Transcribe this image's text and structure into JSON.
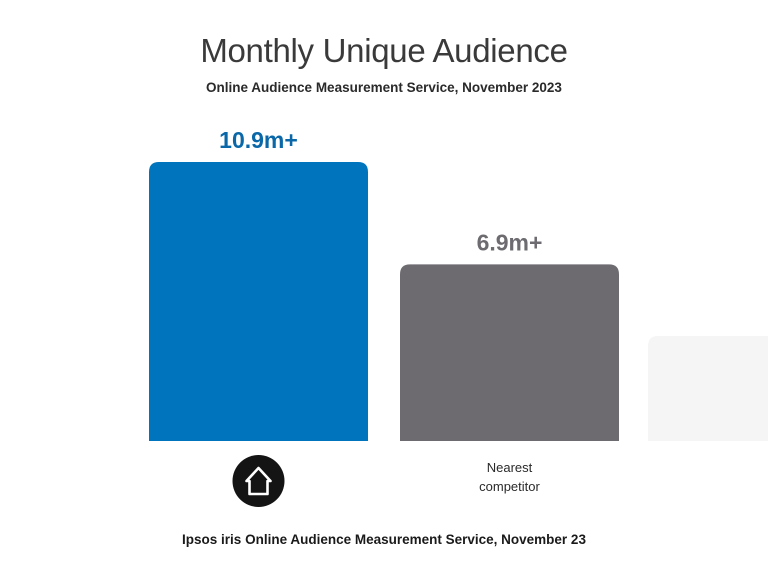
{
  "chart_data": {
    "type": "bar",
    "title": "Monthly Unique Audience",
    "subtitle": "Online Audience Measurement  Service,  November 2023",
    "categories": [
      "",
      "Nearest competitor",
      ""
    ],
    "values": [
      10.9,
      6.9,
      4.1
    ],
    "data_labels": [
      "10.9m+",
      "6.9m+",
      ""
    ],
    "colors": [
      "#0074bc",
      "#6d6b70",
      "#f5f5f5"
    ],
    "label_colors": [
      "#0a67a8",
      "#6d6b70",
      "#6d6b70"
    ],
    "category_icons": [
      "house-icon",
      "",
      ""
    ],
    "ylim": [
      0,
      10.9
    ],
    "grid": false,
    "legend": "none",
    "footnote": "Ipsos iris  Online Audience Measurement  Service,  November 23"
  }
}
